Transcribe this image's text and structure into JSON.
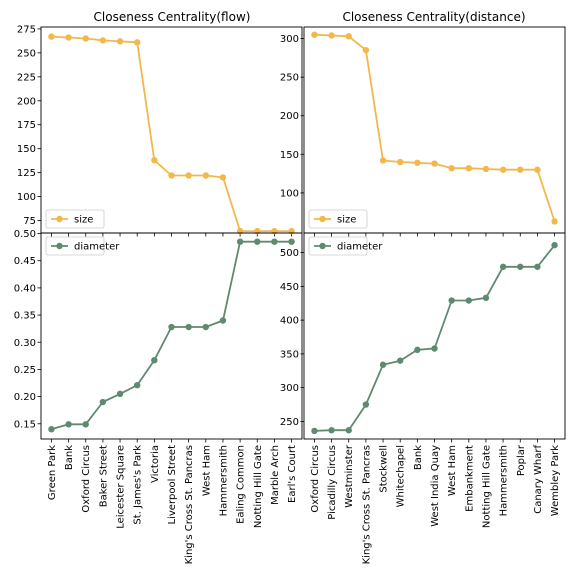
{
  "colors": {
    "size": "#f2b84b",
    "diameter": "#5f8a70"
  },
  "chart_data": [
    {
      "type": "line",
      "title": "Closeness Centrality(flow)",
      "legend": "size",
      "legend_position": "lower-left",
      "color": "#f2b84b",
      "x": [
        "Green Park",
        "Bank",
        "Oxford Circus",
        "Baker Street",
        "Leicester Square",
        "St. James's Park",
        "Victoria",
        "Liverpool Street",
        "King's Cross St. Pancras",
        "West Ham",
        "Hammersmith",
        "Ealing Common",
        "Notting Hill Gate",
        "Marble Arch",
        "Earl's Court"
      ],
      "series": [
        {
          "name": "size",
          "values": [
            267,
            266,
            265,
            263,
            262,
            261,
            138,
            122,
            122,
            122,
            120,
            64,
            64,
            64,
            64
          ]
        }
      ],
      "ylim": [
        62,
        277
      ],
      "yticks": [
        75,
        100,
        125,
        150,
        175,
        200,
        225,
        250,
        275
      ]
    },
    {
      "type": "line",
      "title": "Closeness Centrality(distance)",
      "legend": "size",
      "legend_position": "lower-left",
      "color": "#f2b84b",
      "x": [
        "Oxford Circus",
        "Picadilly Circus",
        "Westminster",
        "King's Cross St. Pancras",
        "Stockwell",
        "Whitechapel",
        "Bank",
        "West India Quay",
        "West Ham",
        "Embankment",
        "Notting Hill Gate",
        "Hammersmith",
        "Poplar",
        "Canary Wharf",
        "Wembley Park"
      ],
      "series": [
        {
          "name": "size",
          "values": [
            305,
            304,
            303,
            285,
            142,
            140,
            139,
            138,
            132,
            132,
            131,
            130,
            130,
            130,
            63
          ]
        }
      ],
      "ylim": [
        48,
        315
      ],
      "yticks": [
        100,
        150,
        200,
        250,
        300
      ]
    },
    {
      "type": "line",
      "legend": "diameter",
      "legend_position": "upper-left",
      "color": "#5f8a70",
      "x": [
        "Green Park",
        "Bank",
        "Oxford Circus",
        "Baker Street",
        "Leicester Square",
        "St. James's Park",
        "Victoria",
        "Liverpool Street",
        "King's Cross St. Pancras",
        "West Ham",
        "Hammersmith",
        "Ealing Common",
        "Notting Hill Gate",
        "Marble Arch",
        "Earl's Court"
      ],
      "series": [
        {
          "name": "diameter",
          "values": [
            0.14,
            0.149,
            0.149,
            0.19,
            0.205,
            0.221,
            0.267,
            0.328,
            0.328,
            0.328,
            0.34,
            0.485,
            0.485,
            0.485,
            0.485
          ]
        }
      ],
      "ylim": [
        0.122,
        0.501
      ],
      "yticks": [
        0.15,
        0.2,
        0.25,
        0.3,
        0.35,
        0.4,
        0.45,
        0.5
      ]
    },
    {
      "type": "line",
      "legend": "diameter",
      "legend_position": "upper-left",
      "color": "#5f8a70",
      "x": [
        "Oxford Circus",
        "Picadilly Circus",
        "Westminster",
        "King's Cross St. Pancras",
        "Stockwell",
        "Whitechapel",
        "Bank",
        "West India Quay",
        "West Ham",
        "Embankment",
        "Notting Hill Gate",
        "Hammersmith",
        "Poplar",
        "Canary Wharf",
        "Wembley Park"
      ],
      "series": [
        {
          "name": "diameter",
          "values": [
            236,
            237,
            237,
            275,
            334,
            340,
            356,
            358,
            429,
            429,
            433,
            479,
            479,
            479,
            511
          ]
        }
      ],
      "ylim": [
        224,
        529
      ],
      "yticks": [
        250,
        300,
        350,
        400,
        450,
        500
      ]
    }
  ]
}
